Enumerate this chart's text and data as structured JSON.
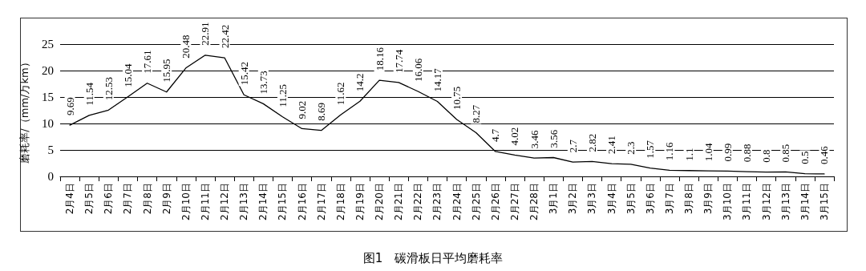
{
  "chart_data": {
    "type": "line",
    "title": "图1　碳滑板日平均磨耗率",
    "ylabel": "磨耗率/（mm/万km）",
    "categories": [
      "2月4日",
      "2月5日",
      "2月6日",
      "2月7日",
      "2月8日",
      "2月9日",
      "2月10日",
      "2月11日",
      "2月12日",
      "2月13日",
      "2月14日",
      "2月15日",
      "2月16日",
      "2月17日",
      "2月18日",
      "2月19日",
      "2月20日",
      "2月21日",
      "2月22日",
      "2月23日",
      "2月24日",
      "2月25日",
      "2月26日",
      "2月27日",
      "2月28日",
      "3月1日",
      "3月2日",
      "3月3日",
      "3月4日",
      "3月5日",
      "3月6日",
      "3月7日",
      "3月8日",
      "3月9日",
      "3月10日",
      "3月11日",
      "3月12日",
      "3月13日",
      "3月14日",
      "3月15日"
    ],
    "series": [
      {
        "color": "#000000",
        "values": [
          9.69,
          11.54,
          12.53,
          15.04,
          17.61,
          15.95,
          20.48,
          22.91,
          22.42,
          15.42,
          13.73,
          11.25,
          9.02,
          8.69,
          11.62,
          14.2,
          18.16,
          17.74,
          16.06,
          14.17,
          10.75,
          8.27,
          4.7,
          4.02,
          3.46,
          3.56,
          2.7,
          2.82,
          2.41,
          2.3,
          1.57,
          1.16,
          1.1,
          1.04,
          0.99,
          0.88,
          0.8,
          0.85,
          0.5,
          0.46
        ]
      }
    ],
    "ylim": [
      0,
      25
    ],
    "yticks": [
      0,
      5,
      10,
      15,
      20,
      25
    ],
    "grid": "y",
    "marker": "none",
    "line_style": "solid",
    "data_labels": true
  }
}
